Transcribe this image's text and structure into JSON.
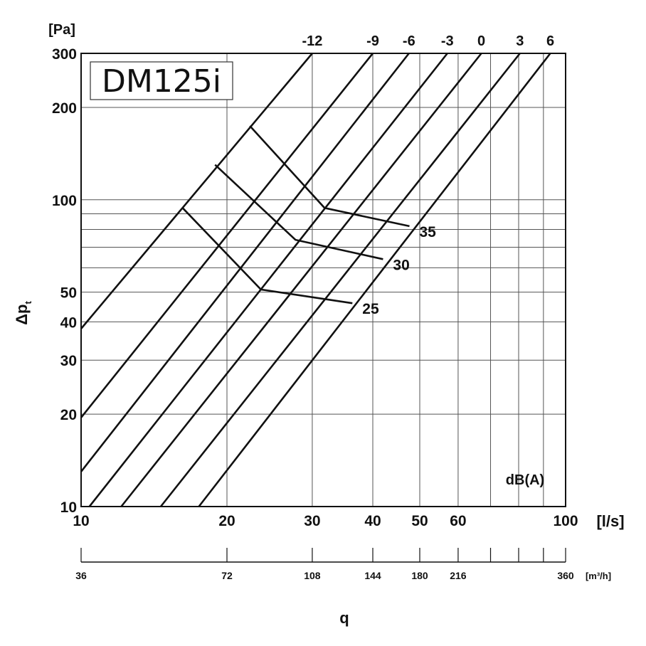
{
  "chart_data": {
    "type": "line",
    "title": "DM125i",
    "xlabel": "q",
    "ylabel": "Δp",
    "ylabel_sub": "t",
    "x_unit": "[l/s]",
    "y_unit": "[Pa]",
    "x2_unit": "[m³/h]",
    "series_label": "dB(A)",
    "xscale": "log",
    "yscale": "log",
    "xlim": [
      10,
      100
    ],
    "ylim": [
      10,
      300
    ],
    "grid": true,
    "x_ticks": [
      {
        "value": 10,
        "label": "10"
      },
      {
        "value": 20,
        "label": "20"
      },
      {
        "value": 30,
        "label": "30"
      },
      {
        "value": 40,
        "label": "40"
      },
      {
        "value": 50,
        "label": "50"
      },
      {
        "value": 60,
        "label": "60"
      },
      {
        "value": 100,
        "label": "100"
      }
    ],
    "x_grid": [
      10,
      20,
      30,
      40,
      50,
      60,
      70,
      80,
      90,
      100
    ],
    "y_ticks": [
      {
        "value": 10,
        "label": "10"
      },
      {
        "value": 20,
        "label": "20"
      },
      {
        "value": 30,
        "label": "30"
      },
      {
        "value": 40,
        "label": "40"
      },
      {
        "value": 50,
        "label": "50"
      },
      {
        "value": 100,
        "label": "100"
      },
      {
        "value": 200,
        "label": "200"
      },
      {
        "value": 300,
        "label": "300"
      }
    ],
    "y_grid": [
      10,
      20,
      30,
      40,
      50,
      60,
      70,
      80,
      90,
      100,
      200,
      300
    ],
    "x2_ticks": [
      {
        "value": 10,
        "label": "36"
      },
      {
        "value": 20,
        "label": "72"
      },
      {
        "value": 30,
        "label": "108"
      },
      {
        "value": 40,
        "label": "144"
      },
      {
        "value": 50,
        "label": "180"
      },
      {
        "value": 60,
        "label": "216"
      },
      {
        "value": 70,
        "label": ""
      },
      {
        "value": 80,
        "label": ""
      },
      {
        "value": 90,
        "label": ""
      },
      {
        "value": 100,
        "label": "360"
      }
    ],
    "series": [
      {
        "name": "-12",
        "x": [
          10.0,
          30.0
        ],
        "y": [
          38,
          300
        ]
      },
      {
        "name": "-9",
        "x": [
          10.0,
          40.0
        ],
        "y": [
          19.5,
          300
        ]
      },
      {
        "name": "-6",
        "x": [
          10.0,
          47.5
        ],
        "y": [
          13,
          300
        ]
      },
      {
        "name": "-3",
        "x": [
          10.4,
          57.0
        ],
        "y": [
          10,
          300
        ]
      },
      {
        "name": "0",
        "x": [
          12.1,
          67.0
        ],
        "y": [
          10,
          300
        ]
      },
      {
        "name": "3",
        "x": [
          14.6,
          80.5
        ],
        "y": [
          10,
          300
        ]
      },
      {
        "name": "6",
        "x": [
          17.5,
          93.0
        ],
        "y": [
          10,
          300
        ]
      }
    ],
    "operating_curves": [
      {
        "label": "25",
        "x": [
          16.2,
          23.5,
          36.3
        ],
        "y": [
          94,
          51,
          46
        ]
      },
      {
        "label": "30",
        "x": [
          18.9,
          27.7,
          42.0
        ],
        "y": [
          130,
          74,
          64
        ]
      },
      {
        "label": "35",
        "x": [
          22.3,
          31.8,
          47.6
        ],
        "y": [
          174,
          94,
          82
        ]
      }
    ]
  }
}
